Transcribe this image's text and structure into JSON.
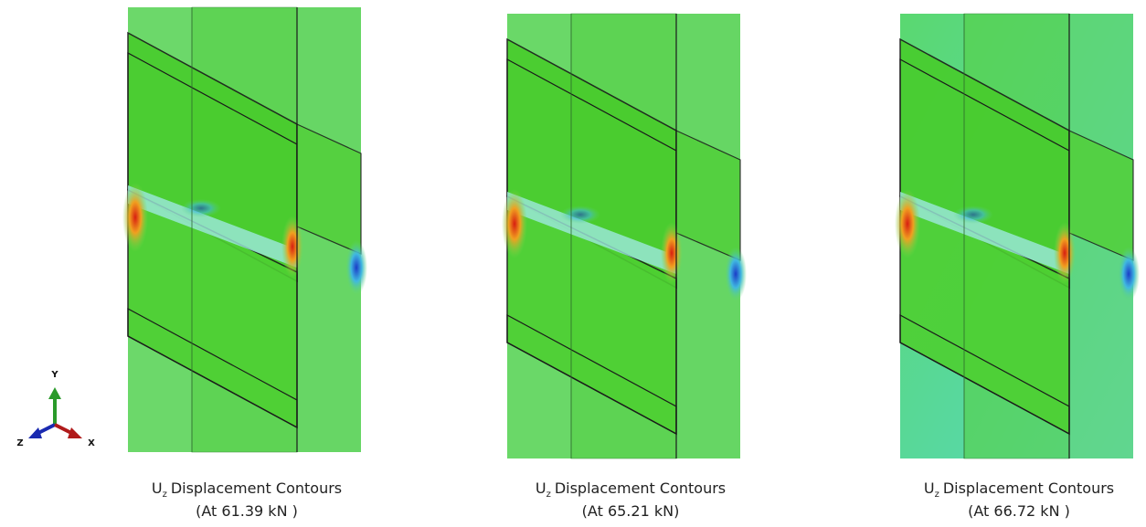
{
  "triad": {
    "y": "Y",
    "z": "Z",
    "x": "X"
  },
  "panels": [
    {
      "symbol": "U",
      "subscript": "z",
      "label": "Displacement Contours",
      "load": "(At 61.39 kN )"
    },
    {
      "symbol": "U",
      "subscript": "z",
      "label": "Displacement Contours",
      "load": "(At 65.21 kN)"
    },
    {
      "symbol": "U",
      "subscript": "z",
      "label": "Displacement Contours",
      "load": "(At 66.72 kN )"
    }
  ]
}
